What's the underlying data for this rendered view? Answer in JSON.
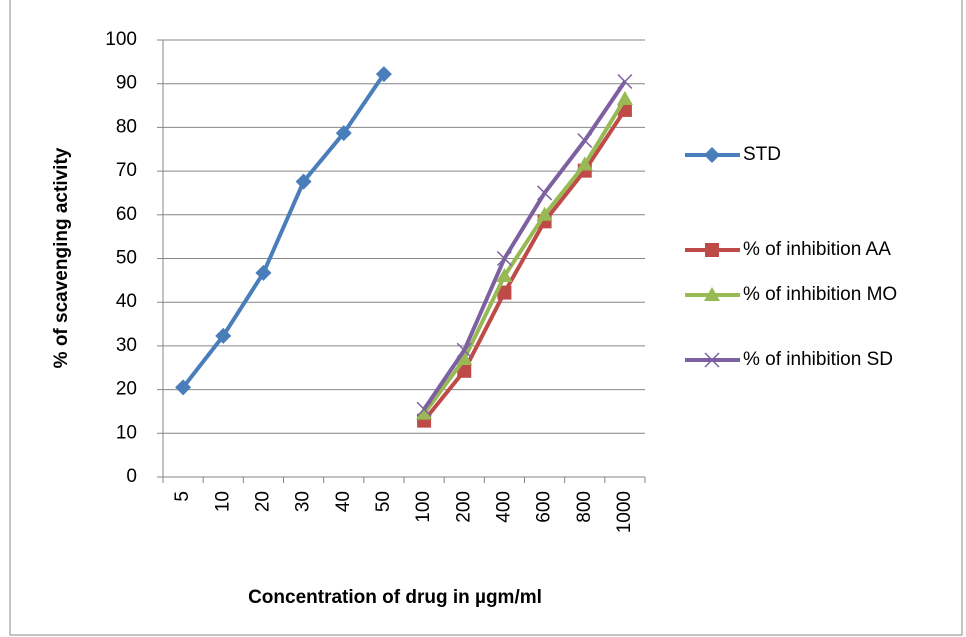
{
  "chart_data": {
    "type": "line",
    "x_label": "Concentration of drug in µgm/ml",
    "y_label": "% of scavenging activity",
    "categories": [
      "5",
      "10",
      "20",
      "30",
      "40",
      "50",
      "100",
      "200",
      "400",
      "600",
      "800",
      "1000"
    ],
    "series": [
      {
        "name": "STD",
        "color": "#4a7ebb",
        "marker": "diamond",
        "values": [
          20.5,
          32.3,
          46.7,
          67.6,
          78.7,
          92.2,
          null,
          null,
          null,
          null,
          null,
          null
        ]
      },
      {
        "name": "% of inhibition AA",
        "color": "#be4b48",
        "marker": "square",
        "values": [
          null,
          null,
          null,
          null,
          null,
          null,
          12.9,
          24.3,
          42.2,
          58.5,
          70.1,
          84.0
        ]
      },
      {
        "name": "% of inhibition MO",
        "color": "#98b954",
        "marker": "triangle",
        "values": [
          null,
          null,
          null,
          null,
          null,
          null,
          14.5,
          27,
          46,
          60,
          71.5,
          86.5
        ]
      },
      {
        "name": "% of inhibition SD",
        "color": "#7d60a0",
        "marker": "x",
        "values": [
          null,
          null,
          null,
          null,
          null,
          null,
          15.5,
          29,
          50,
          65,
          77,
          90.5
        ]
      }
    ],
    "ylim": [
      0,
      100
    ],
    "yticks": [
      0,
      10,
      20,
      30,
      40,
      50,
      60,
      70,
      80,
      90,
      100
    ],
    "grid": true,
    "legend": "right"
  }
}
